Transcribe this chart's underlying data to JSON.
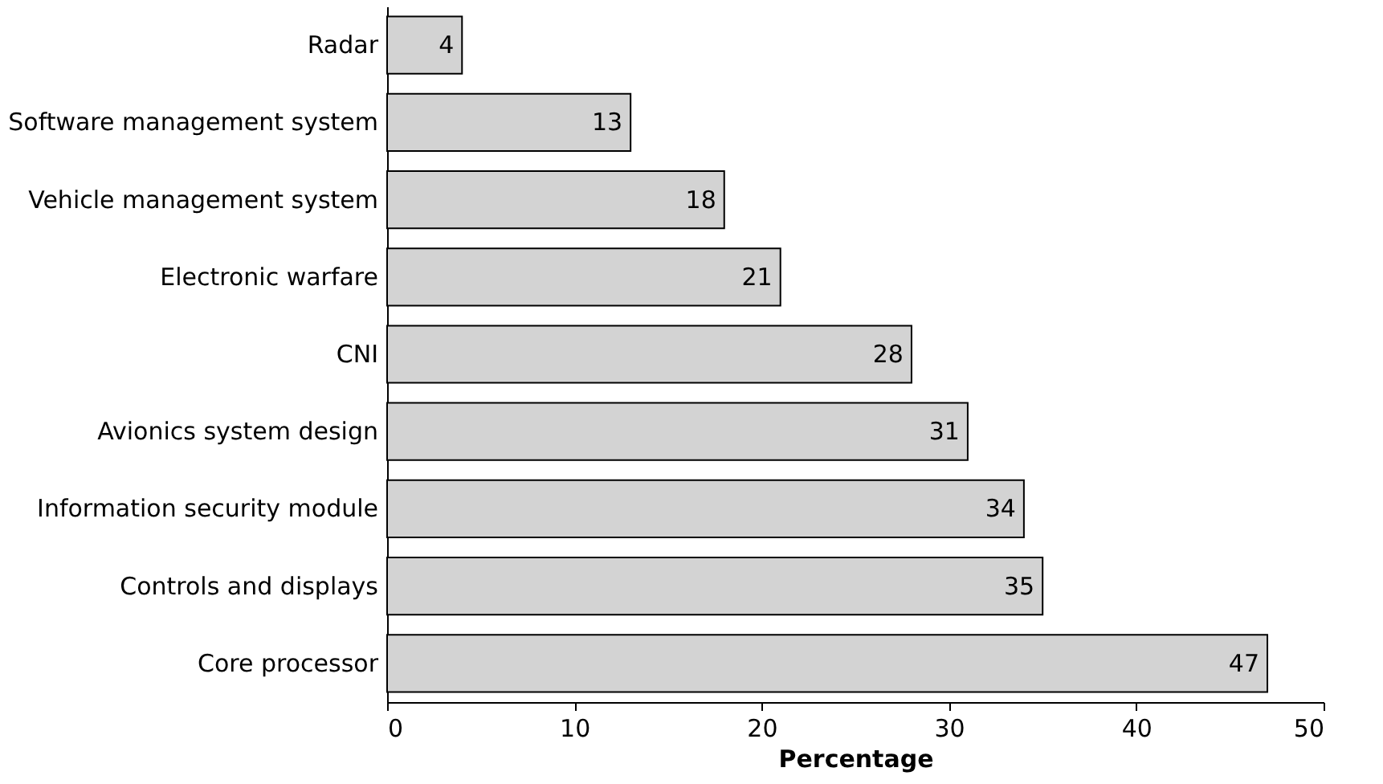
{
  "chart_data": {
    "type": "bar",
    "orientation": "horizontal",
    "xlabel": "Percentage",
    "categories": [
      "Radar",
      "Software management system",
      "Vehicle management system",
      "Electronic warfare",
      "CNI",
      "Avionics system design",
      "Information security module",
      "Controls and displays",
      "Core processor"
    ],
    "values": [
      4,
      13,
      18,
      21,
      28,
      31,
      34,
      35,
      47
    ],
    "color": "#d3d3d3",
    "xlim": [
      0,
      50
    ],
    "xticks": [
      0,
      10,
      20,
      30,
      40,
      50
    ],
    "data_labels": true,
    "grid": false
  }
}
